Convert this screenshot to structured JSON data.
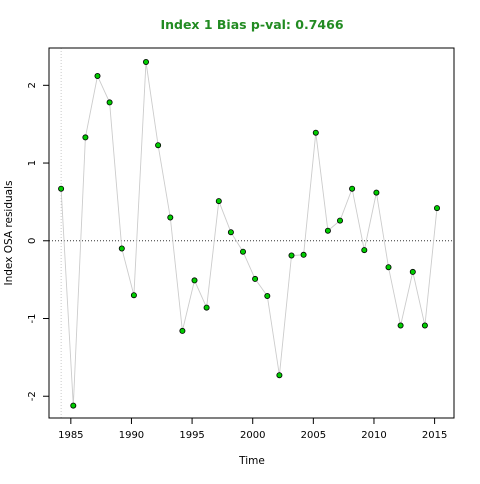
{
  "chart_data": {
    "type": "scatter",
    "title": "Index 1 Bias p-val: 0.7466",
    "xlabel": "Time",
    "ylabel": "Index OSA residuals",
    "xlim": [
      1983.2,
      2016.6
    ],
    "ylim": [
      -2.28,
      2.48
    ],
    "xticks": [
      1985,
      1990,
      1995,
      2000,
      2005,
      2010,
      2015
    ],
    "yticks": [
      -2,
      -1,
      0,
      1,
      2
    ],
    "reference_line_y": 0,
    "vertical_guide_x": 1984.2,
    "connect_points": true,
    "grid": false,
    "legend": "none",
    "colors": {
      "title": "#228B22",
      "point_fill": "#00cc00",
      "point_stroke": "#000000",
      "line": "#cccccc",
      "zero_line": "#333333",
      "guide_line": "#bbbbbb"
    },
    "x": [
      1984.2,
      1985.2,
      1986.2,
      1987.2,
      1988.2,
      1989.2,
      1990.2,
      1991.2,
      1992.2,
      1993.2,
      1994.2,
      1995.2,
      1996.2,
      1997.2,
      1998.2,
      1999.2,
      2000.2,
      2001.2,
      2002.2,
      2003.2,
      2004.2,
      2005.2,
      2006.2,
      2007.2,
      2008.2,
      2009.2,
      2010.2,
      2011.2,
      2012.2,
      2013.2,
      2014.2,
      2015.2
    ],
    "y": [
      0.67,
      -2.12,
      1.33,
      2.12,
      1.78,
      -0.1,
      -0.7,
      2.3,
      1.23,
      0.3,
      -1.16,
      -0.51,
      -0.86,
      0.51,
      0.11,
      -0.14,
      -0.49,
      -0.71,
      -1.73,
      -0.19,
      -0.18,
      1.39,
      0.13,
      0.26,
      0.67,
      -0.12,
      0.62,
      -0.34,
      -1.09,
      -0.4,
      -1.09,
      0.42
    ]
  }
}
